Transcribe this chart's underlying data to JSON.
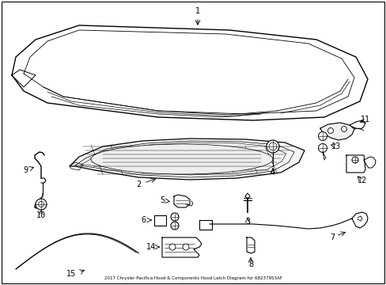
{
  "title": "2017 Chrysler Pacifica Hood & Components Hood Latch Diagram for 68237953AF",
  "background_color": "#ffffff",
  "line_color": "#000000",
  "figsize": [
    4.89,
    3.6
  ],
  "dpi": 100
}
